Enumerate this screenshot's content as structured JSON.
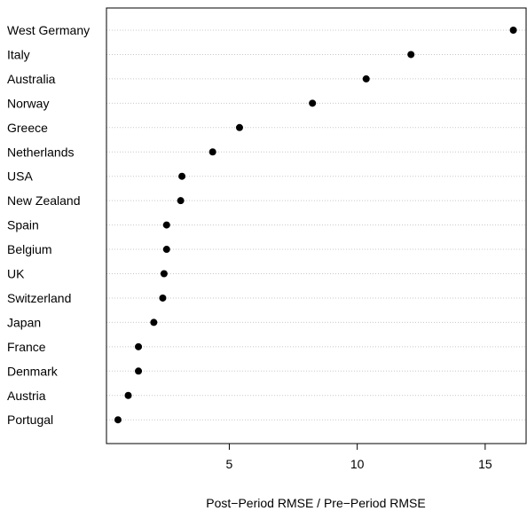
{
  "chart_data": {
    "type": "dotplot",
    "categories": [
      "West Germany",
      "Italy",
      "Australia",
      "Norway",
      "Greece",
      "Netherlands",
      "USA",
      "New Zealand",
      "Spain",
      "Belgium",
      "UK",
      "Switzerland",
      "Japan",
      "France",
      "Denmark",
      "Austria",
      "Portugal"
    ],
    "values": [
      16.1,
      12.1,
      10.35,
      8.25,
      5.4,
      4.35,
      3.15,
      3.1,
      2.55,
      2.55,
      2.45,
      2.4,
      2.05,
      1.45,
      1.45,
      1.05,
      0.65
    ],
    "xlabel": "Post−Period RMSE / Pre−Period RMSE",
    "ylabel": "",
    "title": "",
    "xticks": [
      5,
      10,
      15
    ],
    "xlim": [
      0.2,
      16.6
    ],
    "grid": "horizontal dotted lines per category",
    "colors": {
      "dot": "#000000",
      "grid": "#c8c8c8",
      "frame": "#000000"
    }
  }
}
